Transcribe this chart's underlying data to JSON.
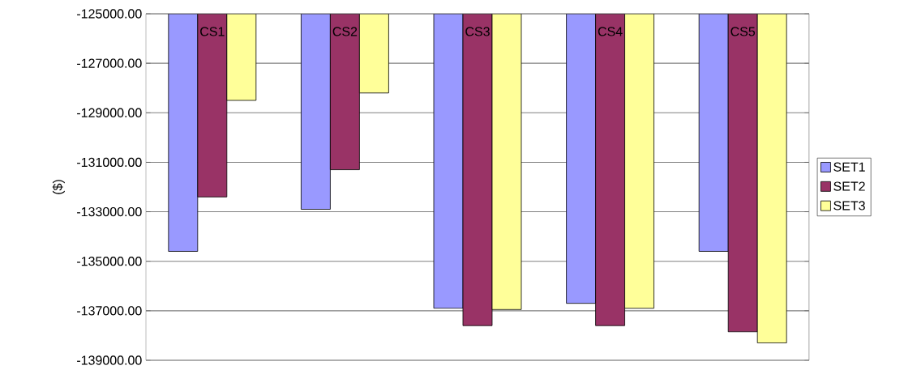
{
  "chart_data": {
    "type": "bar",
    "ylabel": "($)",
    "categories": [
      "CS1",
      "CS2",
      "CS3",
      "CS4",
      "CS5"
    ],
    "series": [
      {
        "name": "SET1",
        "color": "#9999ff",
        "values": [
          -134600,
          -132900,
          -136900,
          -136700,
          -134600
        ]
      },
      {
        "name": "SET2",
        "color": "#993366",
        "values": [
          -132400,
          -131300,
          -137600,
          -137600,
          -137850
        ]
      },
      {
        "name": "SET3",
        "color": "#ffff99",
        "values": [
          -128500,
          -128200,
          -136950,
          -136900,
          -138300
        ]
      }
    ],
    "ylim": [
      -139000,
      -125000
    ],
    "yticks": [
      {
        "value": -139000,
        "label": "-139000.00"
      },
      {
        "value": -137000,
        "label": "-137000.00"
      },
      {
        "value": -135000,
        "label": "-135000.00"
      },
      {
        "value": -133000,
        "label": "-133000.00"
      },
      {
        "value": -131000,
        "label": "-131000.00"
      },
      {
        "value": -129000,
        "label": "-129000.00"
      },
      {
        "value": -127000,
        "label": "-127000.00"
      },
      {
        "value": -125000,
        "label": "-125000.00"
      }
    ],
    "grid": "y",
    "legend": "right"
  }
}
